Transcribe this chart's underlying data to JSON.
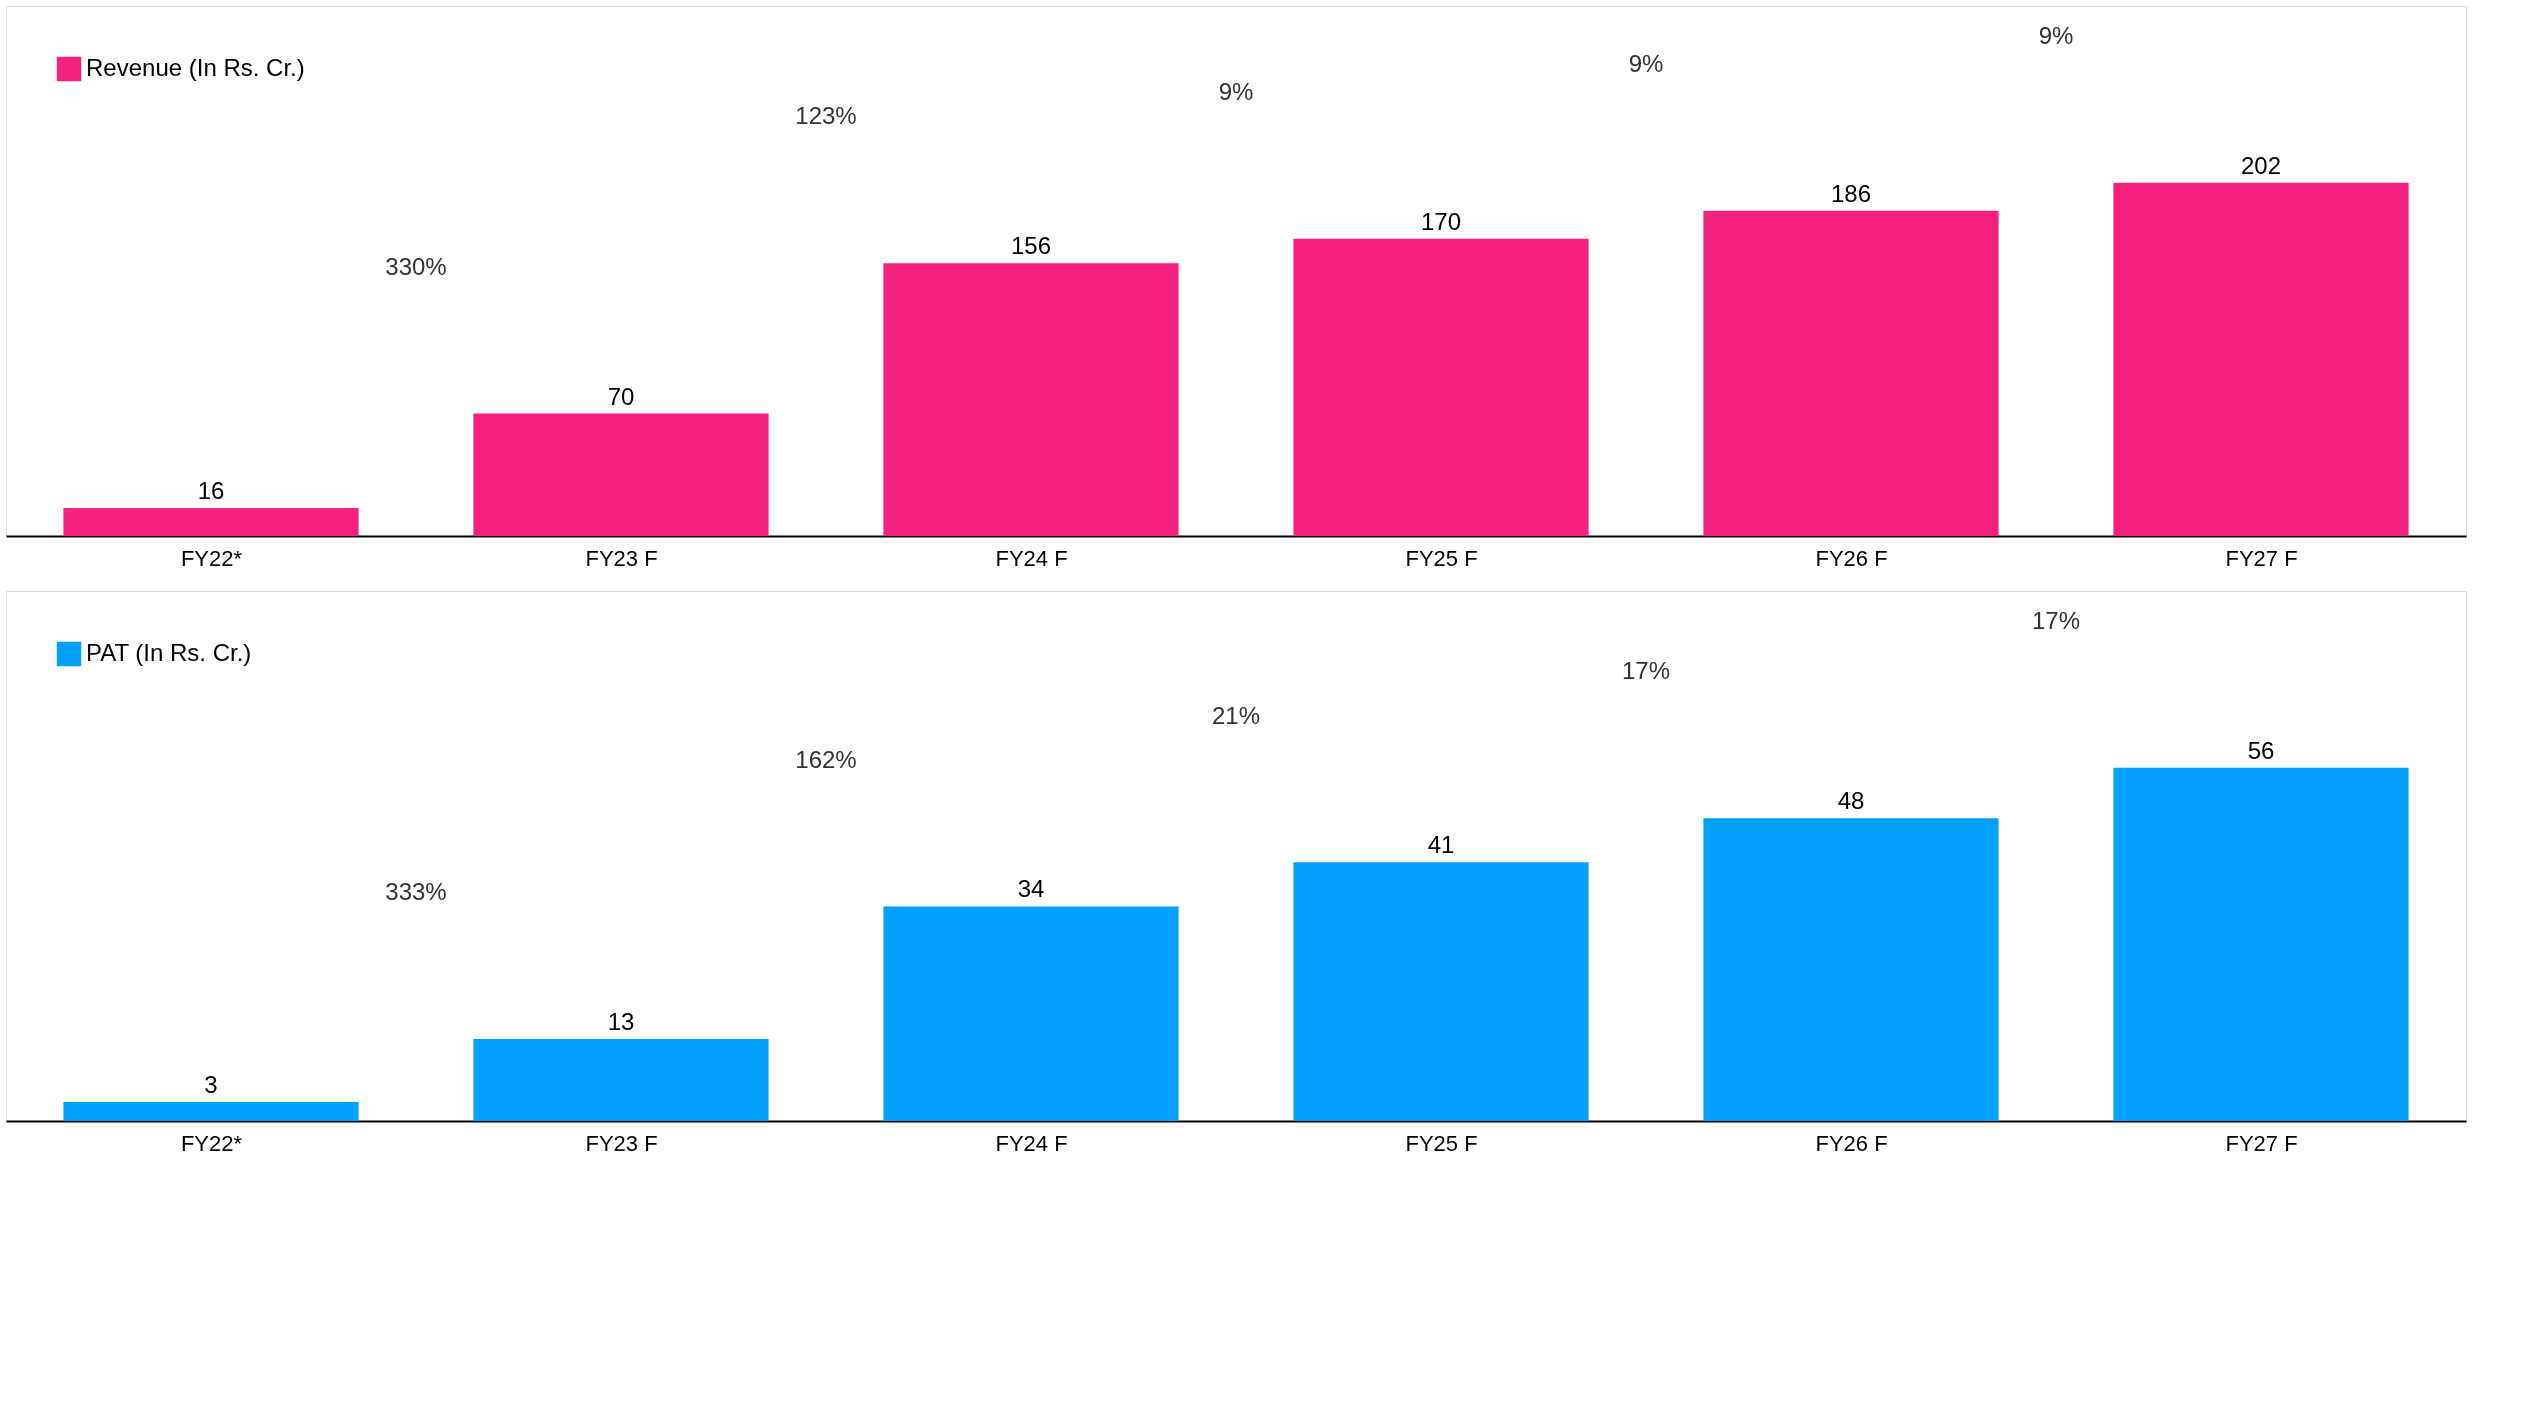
{
  "chart_data": [
    {
      "type": "bar",
      "categories": [
        "FY22*",
        "FY23 F",
        "FY24 F",
        "FY25 F",
        "FY26 F",
        "FY27 F"
      ],
      "series": [
        {
          "name": "Revenue (In Rs. Cr.)",
          "color": "#f5217e",
          "values": [
            16,
            70,
            156,
            170,
            186,
            202
          ]
        }
      ],
      "data_labels": true,
      "legend": "top left",
      "annotations": [
        "330%",
        "123%",
        "9%",
        "9%",
        "9%"
      ]
    },
    {
      "type": "bar",
      "categories": [
        "FY22*",
        "FY23 F",
        "FY24 F",
        "FY25 F",
        "FY26 F",
        "FY27 F"
      ],
      "series": [
        {
          "name": "PAT (In Rs. Cr.)",
          "color": "#03a0fb",
          "values": [
            3,
            13,
            34,
            41,
            48,
            56
          ]
        }
      ],
      "data_labels": true,
      "legend": "top left",
      "annotations": [
        "333%",
        "162%",
        "21%",
        "17%",
        "17%"
      ]
    }
  ]
}
